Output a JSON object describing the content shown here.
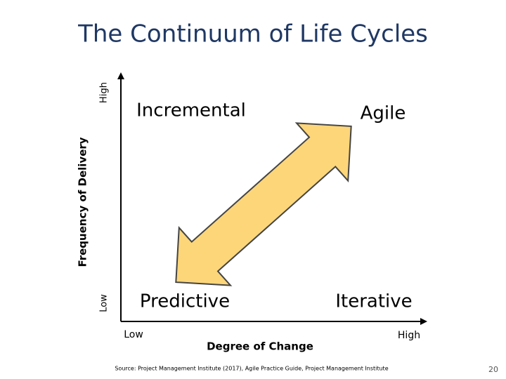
{
  "title": "The Continuum of Life Cycles",
  "y_axis": {
    "label": "Frequency of Delivery",
    "low": "Low",
    "high": "High"
  },
  "x_axis": {
    "label": "Degree of Change",
    "low": "Low",
    "high": "High"
  },
  "quadrants": {
    "top_left": "Incremental",
    "top_right": "Agile",
    "bottom_left": "Predictive",
    "bottom_right": "Iterative"
  },
  "source": "Source: Project Management Institute (2017), Agile Practice Guide, Project Management Institute",
  "page_number": "20"
}
